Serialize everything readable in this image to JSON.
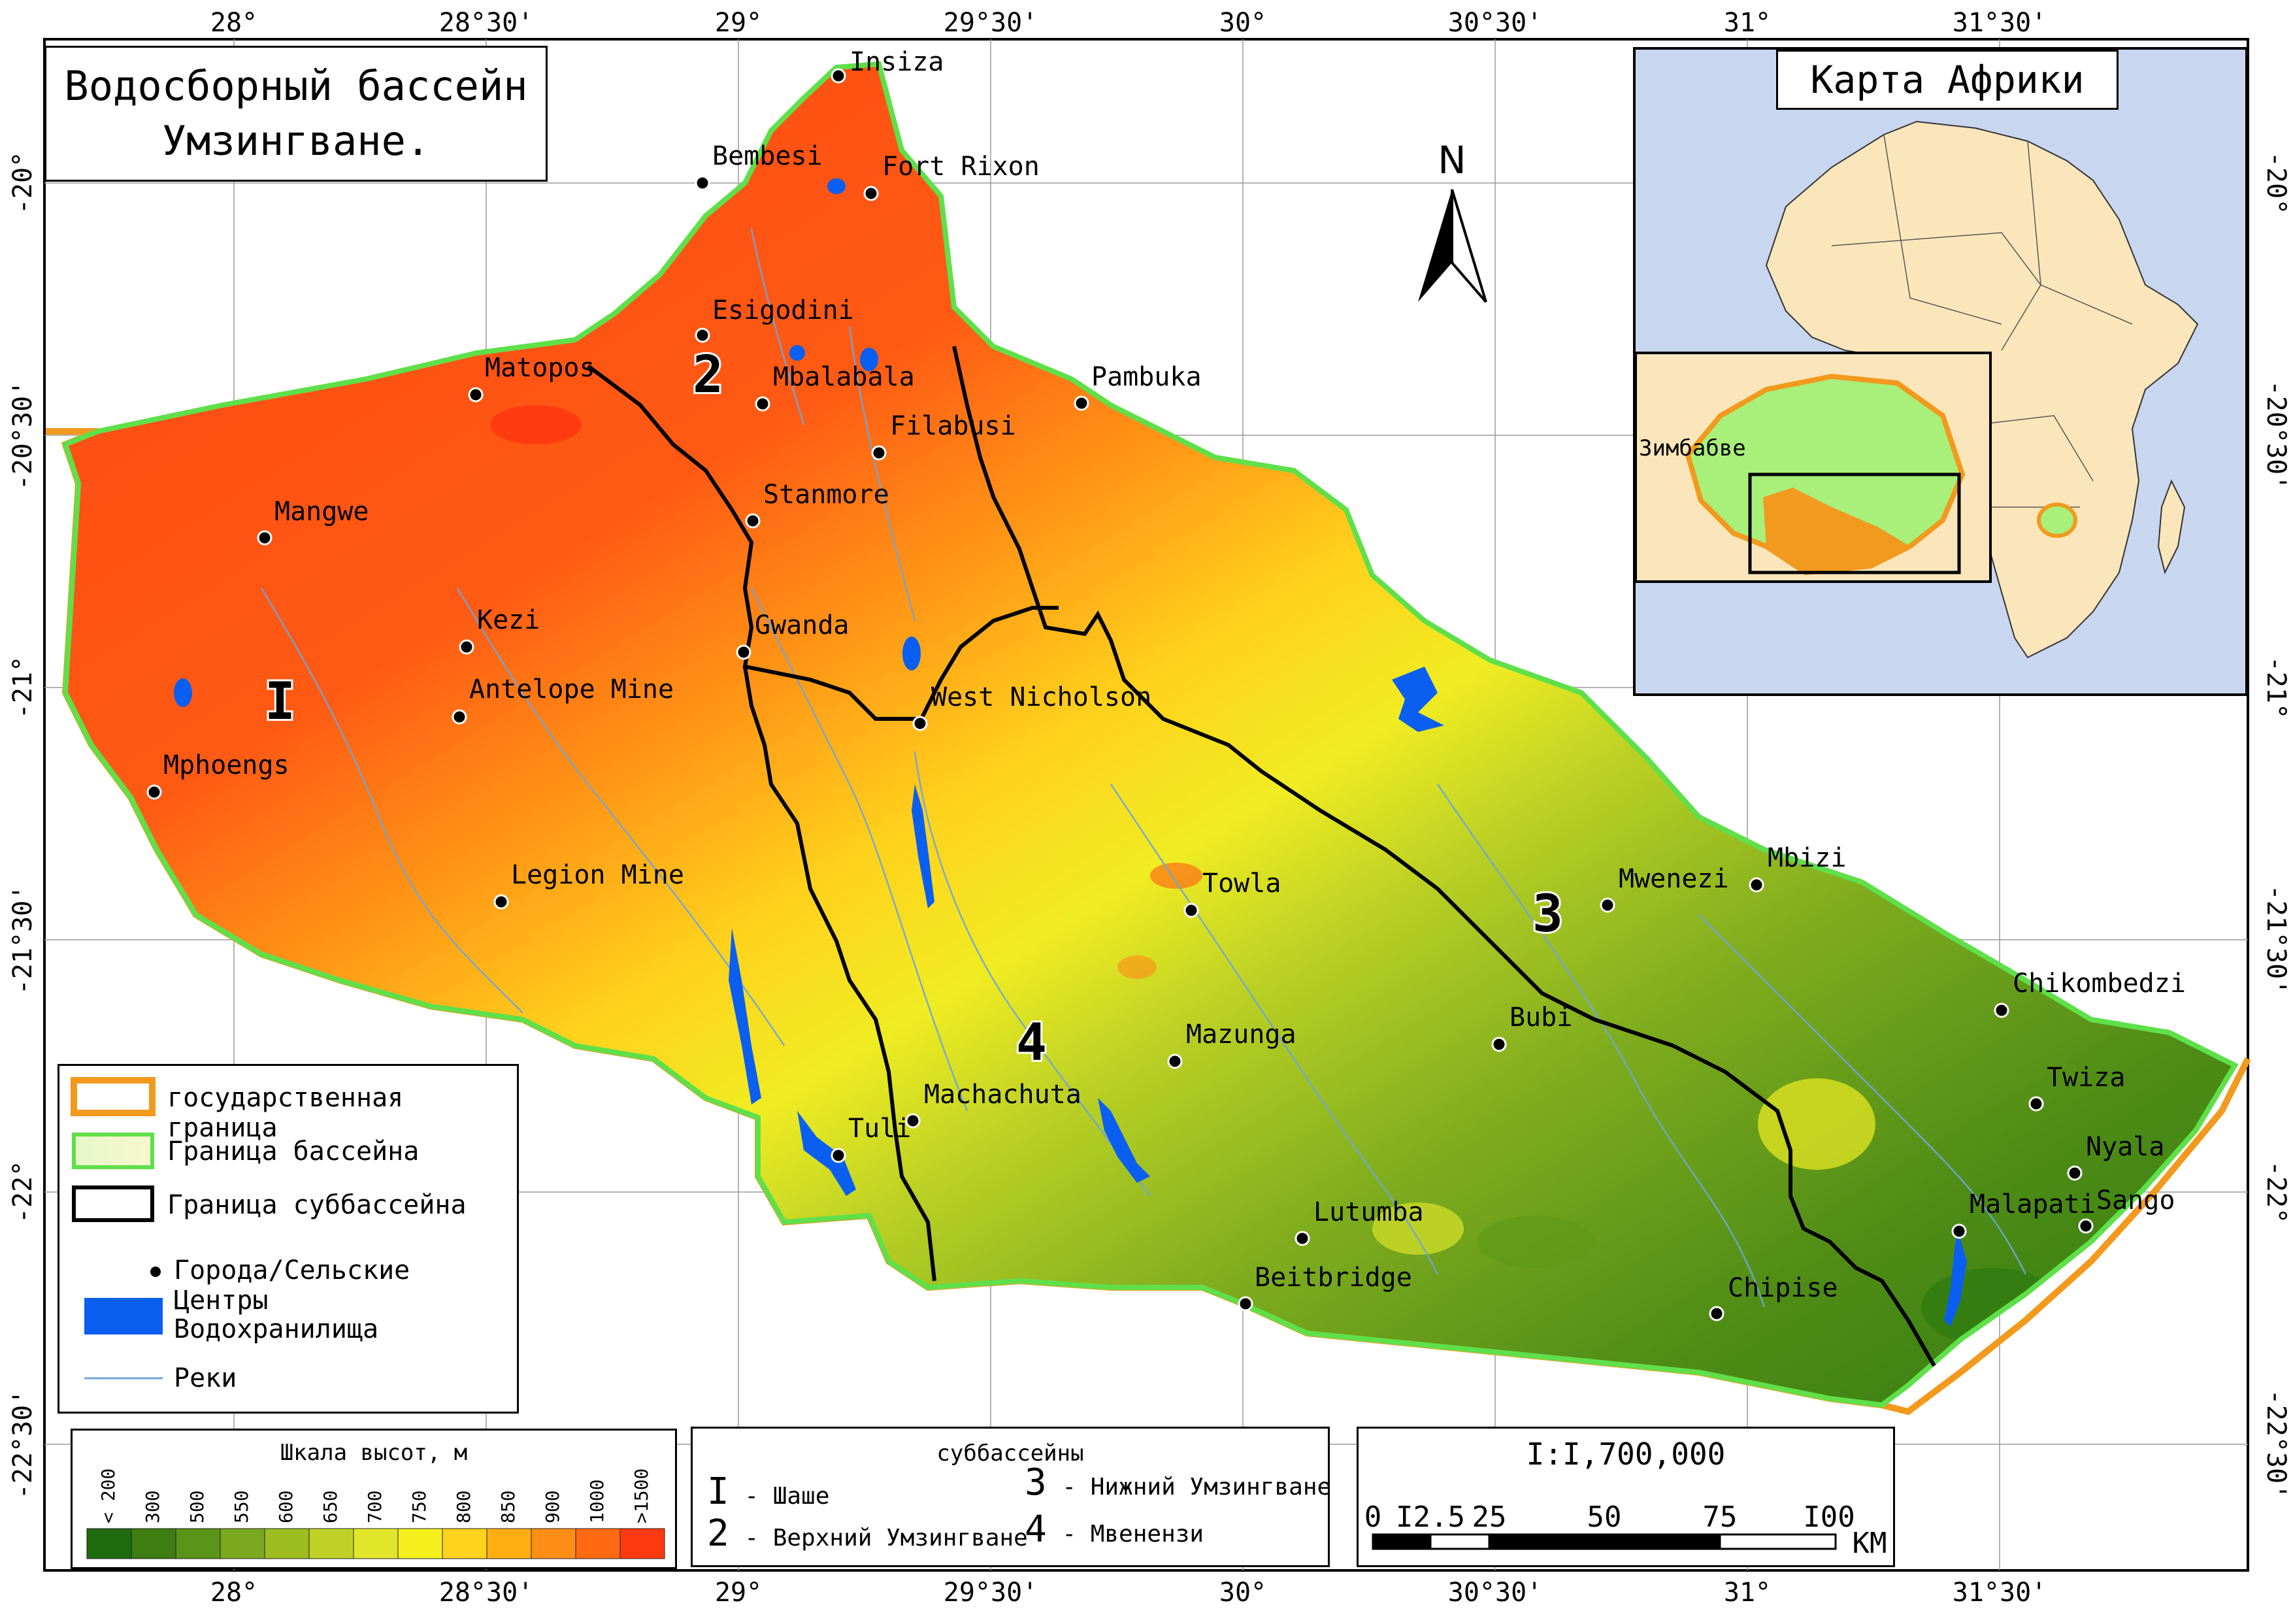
{
  "map": {
    "title_line1": "Водосборный бассейн",
    "title_line2": "Умзингване.",
    "north": "N",
    "colors": {
      "reservoir": "#0a5ff0",
      "river": "#6fa6d8",
      "basin_border": "#5fe04a",
      "state_border": "#f29a1e",
      "ocean": "#c9d6ef",
      "land": "#fbe6bb",
      "zimbabwe": "#a8f07a",
      "catchment_highlight": "#f29a1e"
    }
  },
  "coords": {
    "top": [
      "28°",
      "28°30'",
      "29°",
      "29°30'",
      "30°",
      "30°30'",
      "31°",
      "31°30'"
    ],
    "bottom": [
      "28°",
      "28°30'",
      "29°",
      "29°30'",
      "30°",
      "30°30'",
      "31°",
      "31°30'"
    ],
    "left": [
      "-20°",
      "-20°30'",
      "-21°",
      "-21°30'",
      "-22°",
      "-22°30'"
    ],
    "right": [
      "-20°",
      "-20°30'",
      "-21°",
      "-21°30'",
      "-22°",
      "-22°30'"
    ]
  },
  "towns": [
    "Insiza",
    "Bembesi",
    "Fort Rixon",
    "Esigodini",
    "Matopos",
    "Mbalabala",
    "Pambuka",
    "Filabusi",
    "Stanmore",
    "Mangwe",
    "Kezi",
    "Gwanda",
    "Antelope Mine",
    "West Nicholson",
    "Mphoengs",
    "Mbizi",
    "Mwenezi",
    "Towla",
    "Legion Mine",
    "Chikombedzi",
    "Bubi",
    "Mazunga",
    "Twiza",
    "Machachuta",
    "Tuli",
    "Nyala",
    "Sango",
    "Malapati",
    "Lutumba",
    "Beitbridge",
    "Chipise"
  ],
  "subbasin_numbers": [
    "I",
    "2",
    "3",
    "4"
  ],
  "inset": {
    "title": "Карта Африки",
    "zimbabwe_label": "Зимбабве"
  },
  "legend": {
    "items": [
      "государственная граница",
      "Граница бассейна",
      "Граница суббассейна",
      "Города/Сельские Центры",
      "Водохранилища",
      "Реки"
    ]
  },
  "elevation_scale": {
    "title": "Шкала высот, м",
    "labels": [
      "< 200",
      "300",
      "500",
      "550",
      "600",
      "650",
      "700",
      "750",
      "800",
      "850",
      "900",
      "1000",
      ">1500"
    ],
    "colors": [
      "#1f6b10",
      "#3d7d12",
      "#5a9418",
      "#7aa81e",
      "#9cbc20",
      "#bfd126",
      "#e1e62a",
      "#f6ef1e",
      "#ffd21c",
      "#ffae12",
      "#ff8e16",
      "#ff6a12",
      "#ff3a10"
    ]
  },
  "subbasins_box": {
    "title": "суббассейны",
    "items": [
      {
        "num": "I",
        "name": "- Шаше"
      },
      {
        "num": "2",
        "name": "- Верхний Умзингване"
      },
      {
        "num": "3",
        "name": "- Нижний Умзингване"
      },
      {
        "num": "4",
        "name": "- Мвенензи"
      }
    ]
  },
  "scale_box": {
    "ratio": "I:I,700,000",
    "ticks": [
      "0",
      "I2.5",
      "25",
      "50",
      "75",
      "I00"
    ],
    "unit": "KM"
  }
}
